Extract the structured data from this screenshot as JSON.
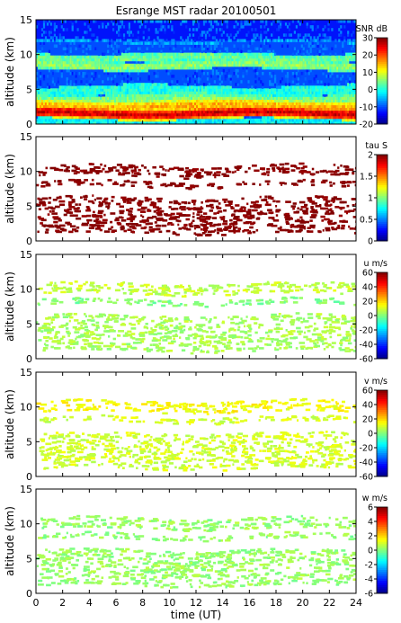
{
  "chart_data": {
    "type": "heatmap",
    "title": "Esrange MST radar 20100501",
    "xlabel": "time (UT)",
    "x_ticks": [
      0,
      2,
      4,
      6,
      8,
      10,
      12,
      14,
      16,
      18,
      20,
      22,
      24
    ],
    "xlim": [
      0,
      24
    ],
    "panels": [
      {
        "id": "snr",
        "ylabel": "altitude (km)",
        "ylim": [
          0,
          15
        ],
        "y_ticks": [
          0,
          5,
          10,
          15
        ],
        "colorbar_label": "SNR dB",
        "clim": [
          -20,
          30
        ],
        "colorbar_ticks": [
          30,
          20,
          10,
          0,
          -10,
          -20
        ],
        "fill": "full",
        "background_value": -10,
        "features": [
          {
            "alt": 1.6,
            "width": 0.7,
            "value": 26
          },
          {
            "alt": 2.6,
            "width": 0.8,
            "value": 15
          },
          {
            "alt": 3.6,
            "width": 0.6,
            "value": 5
          },
          {
            "alt": 0.4,
            "width": 0.4,
            "value": -2
          },
          {
            "alt": 4.8,
            "width": 0.6,
            "value": 0
          },
          {
            "alt": 8.5,
            "width": 0.5,
            "value": 6
          },
          {
            "alt": 9.6,
            "width": 0.5,
            "value": 4
          },
          {
            "alt": 13.5,
            "width": 1.5,
            "value": -14
          }
        ]
      },
      {
        "id": "tau",
        "ylabel": "altitude (km)",
        "ylim": [
          0,
          15
        ],
        "y_ticks": [
          0,
          5,
          10,
          15
        ],
        "colorbar_label": "tau S",
        "clim": [
          0,
          2
        ],
        "colorbar_ticks": [
          2,
          1.5,
          1,
          0.5,
          0
        ],
        "fill": "sparse",
        "layers": [
          {
            "alt": 3.8,
            "width": 2.6,
            "value": 1.98
          },
          {
            "alt": 10.2,
            "width": 0.8,
            "value": 1.98
          },
          {
            "alt": 8.3,
            "width": 0.4,
            "value": 1.98
          }
        ]
      },
      {
        "id": "u",
        "ylabel": "altitude (km)",
        "ylim": [
          0,
          15
        ],
        "y_ticks": [
          0,
          5,
          10,
          15
        ],
        "colorbar_label": "u m/s",
        "clim": [
          -60,
          60
        ],
        "colorbar_ticks": [
          60,
          40,
          20,
          0,
          -20,
          -40,
          -60
        ],
        "fill": "sparse",
        "layers": [
          {
            "alt": 3.8,
            "width": 2.6,
            "value": 5
          },
          {
            "alt": 10.2,
            "width": 0.8,
            "value": 8
          },
          {
            "alt": 8.3,
            "width": 0.4,
            "value": 0
          }
        ]
      },
      {
        "id": "v",
        "ylabel": "altitude (km)",
        "ylim": [
          0,
          15
        ],
        "y_ticks": [
          0,
          5,
          10,
          15
        ],
        "colorbar_label": "v m/s",
        "clim": [
          -60,
          60
        ],
        "colorbar_ticks": [
          60,
          40,
          20,
          0,
          -20,
          -40,
          -60
        ],
        "fill": "sparse",
        "layers": [
          {
            "alt": 3.8,
            "width": 2.6,
            "value": 10
          },
          {
            "alt": 10.2,
            "width": 0.8,
            "value": 15
          },
          {
            "alt": 8.3,
            "width": 0.4,
            "value": 10
          }
        ]
      },
      {
        "id": "w",
        "ylabel": "altitude (km)",
        "ylim": [
          0,
          15
        ],
        "y_ticks": [
          0,
          5,
          10,
          15
        ],
        "colorbar_label": "w m/s",
        "clim": [
          -6,
          6
        ],
        "colorbar_ticks": [
          6,
          4,
          2,
          0,
          -2,
          -4,
          -6
        ],
        "fill": "sparse",
        "layers": [
          {
            "alt": 3.8,
            "width": 2.6,
            "value": 0.3
          },
          {
            "alt": 10.2,
            "width": 0.8,
            "value": 0.3
          },
          {
            "alt": 8.3,
            "width": 0.4,
            "value": 0.2
          }
        ]
      }
    ]
  }
}
